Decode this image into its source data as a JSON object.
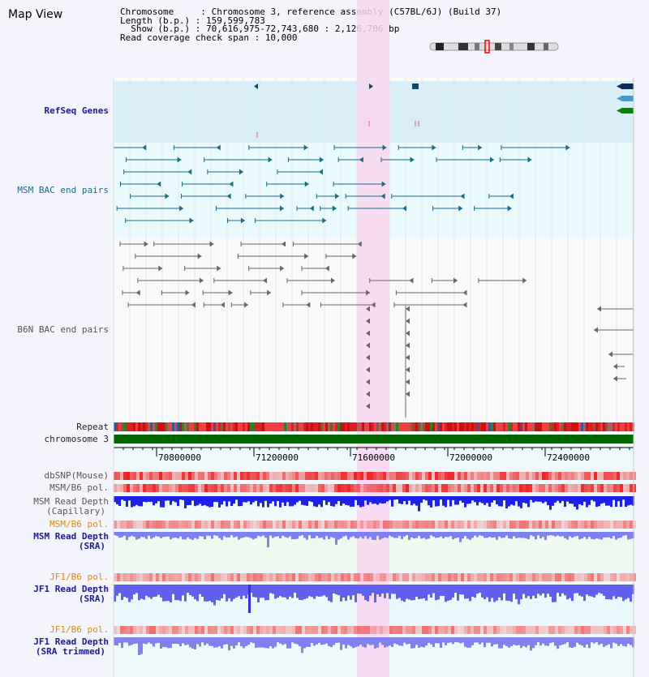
{
  "header": {
    "title": "Map View",
    "chromosome_key": "Chromosome     : ",
    "chromosome_value": "Chromosome 3, reference assembly (C57BL/6J) (Build 37)",
    "length_key": "Length (b.p.) : ",
    "length_value": "159,599,783",
    "show_key": "  Show (b.p.) : ",
    "show_value": "70,616,975-72,743,680 : 2,126,706 bp",
    "read_cov_key": "Read coverage check span : ",
    "read_cov_value": "10,000"
  },
  "tracks": {
    "refseq": "RefSeq Genes",
    "msm_bac": "MSM BAC end pairs",
    "b6n_bac": "B6N BAC end pairs",
    "repeat": "Repeat",
    "chromosome": "chromosome 3",
    "dbsnp": "dbSNP(Mouse)",
    "msm_b6_pol_1": "MSM/B6 pol.",
    "msm_read_depth_cap": "MSM Read Depth",
    "msm_read_depth_cap_sub": "(Capillary)",
    "msm_b6_pol_2": "MSM/B6 pol.",
    "msm_read_depth_sra": "MSM Read Depth",
    "msm_read_depth_sra_sub": "(SRA)",
    "jf1_b6_pol_1": "JF1/B6 pol.",
    "jf1_read_depth_sra": "JF1 Read Depth",
    "jf1_read_depth_sra_sub": "(SRA)",
    "jf1_b6_pol_2": "JF1/B6 pol.",
    "jf1_read_depth_trim": "JF1 Read Depth",
    "jf1_read_depth_trim_sub": "(SRA trimmed)"
  },
  "axis": {
    "ticks": [
      "70800000",
      "71200000",
      "71600000",
      "72000000",
      "72400000"
    ]
  },
  "colors": {
    "highlight": "#f9d6f0",
    "refseq_bg": "#d8eef9",
    "msm_bg": "#e8fafc",
    "teal_track": "#1a6a8a",
    "gray_track": "#666666",
    "chromosome_bar": "#006600",
    "depth_blue": "#2020ee",
    "depth_light": "#8080ee",
    "pol_red": "#ee2020"
  }
}
